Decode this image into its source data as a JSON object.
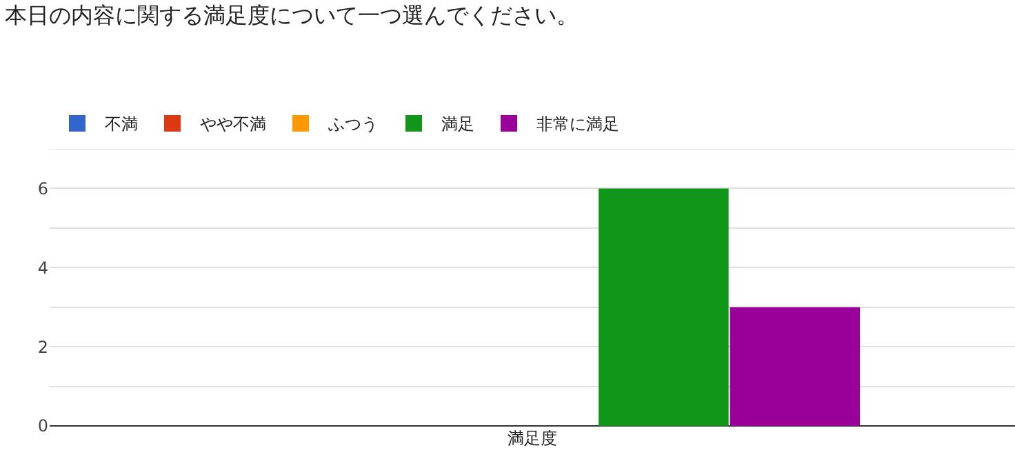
{
  "chart_data": {
    "type": "bar",
    "title": "本日の内容に関する満足度について一つ選んでください。",
    "categories": [
      "満足度"
    ],
    "series": [
      {
        "name": "不満",
        "color": "#3366cc",
        "values": [
          0
        ]
      },
      {
        "name": "やや不満",
        "color": "#dc3912",
        "values": [
          0
        ]
      },
      {
        "name": "ふつう",
        "color": "#ff9900",
        "values": [
          0
        ]
      },
      {
        "name": "満足",
        "color": "#109618",
        "values": [
          6
        ]
      },
      {
        "name": "非常に満足",
        "color": "#990099",
        "values": [
          3
        ]
      }
    ],
    "ylim": [
      0,
      7
    ],
    "yticks": [
      0,
      {
        "value": 1,
        "label": null
      },
      2,
      {
        "value": 3,
        "label": null
      },
      4,
      {
        "value": 5,
        "label": null
      },
      6,
      {
        "value": 7,
        "label": null
      }
    ],
    "grid": true,
    "legend": "top left"
  }
}
